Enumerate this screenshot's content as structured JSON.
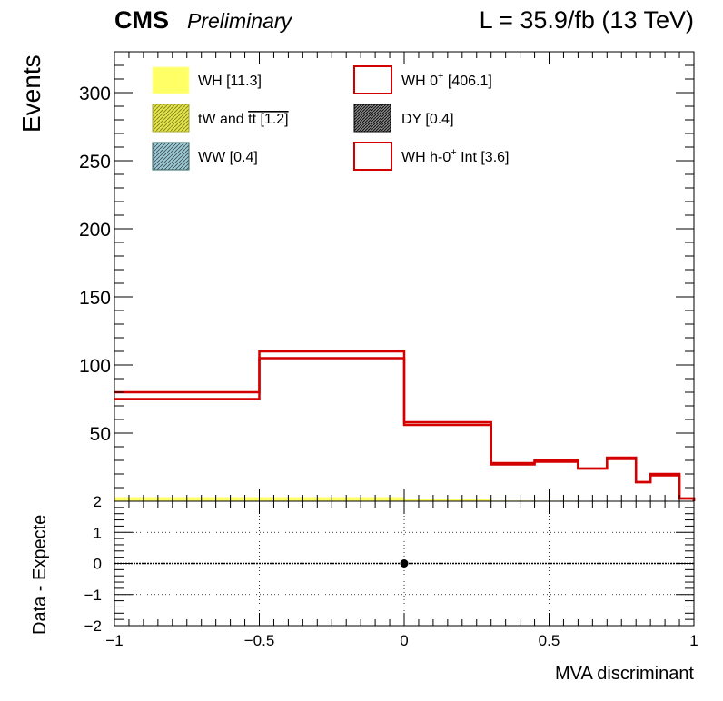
{
  "header": {
    "experiment": "CMS",
    "status": "Preliminary",
    "lumi": "L = 35.9/fb (13 TeV)"
  },
  "legend": {
    "items": [
      {
        "label": "WH [11.3]",
        "style": "yellow-fill"
      },
      {
        "label": "WH 0+ [406.1]",
        "label_main": "WH 0",
        "label_sup": "+",
        "label_rest": " [406.1]",
        "style": "red-line"
      },
      {
        "label": "tW and tt [1.2]",
        "label_main": "tW and ",
        "label_over": "tt [1.2]",
        "style": "olive-hatch"
      },
      {
        "label": "DY [0.4]",
        "style": "dark-hatch"
      },
      {
        "label": "WW [0.4]",
        "style": "teal-hatch"
      },
      {
        "label": "WH h-0+ Int [3.6]",
        "label_main": "WH h-0",
        "label_sup": "+",
        "label_rest": " Int [3.6]",
        "style": "red-line"
      }
    ]
  },
  "colors": {
    "signal": "#d40000",
    "wh": "#ffff66",
    "tw_tt": "#cccc33",
    "ww": "#66aaaa",
    "dy": "#444444"
  },
  "chart_data": [
    {
      "type": "line",
      "title": "",
      "xlabel": "MVA discriminant",
      "ylabel": "Events",
      "xlim": [
        -1,
        1
      ],
      "ylim": [
        0,
        330
      ],
      "yticks": [
        50,
        100,
        150,
        200,
        250,
        300
      ],
      "bin_edges": [
        -1.0,
        -0.5,
        0.0,
        0.3,
        0.45,
        0.6,
        0.7,
        0.8,
        0.85,
        0.95,
        1.0
      ],
      "series": [
        {
          "name": "WH 0+ [406.1]",
          "style": "step",
          "color": "#d40000",
          "values": [
            80,
            110,
            58,
            28,
            30,
            24,
            32,
            14,
            20,
            2
          ]
        },
        {
          "name": "WH h-0+ Int [3.6]",
          "style": "step",
          "color": "#d40000",
          "values": [
            75,
            105,
            56,
            27,
            29,
            24,
            31,
            14,
            19,
            2
          ]
        },
        {
          "name": "WH [11.3]",
          "style": "filled",
          "color": "#ffff66",
          "values": [
            3,
            3,
            1.5,
            0.5,
            0.4,
            0.3,
            0.3,
            0.2,
            0.2,
            0.1
          ]
        }
      ]
    },
    {
      "type": "scatter",
      "xlabel": "MVA discriminant",
      "ylabel": "Data - Expecte",
      "xlim": [
        -1,
        1
      ],
      "ylim": [
        -2,
        2
      ],
      "xticks": [
        -1,
        -0.5,
        0,
        0.5,
        1
      ],
      "xtick_labels": [
        "−1",
        "−0.5",
        "0",
        "0.5",
        "1"
      ],
      "yticks": [
        -2,
        -1,
        0,
        1,
        2
      ],
      "ytick_labels": [
        "−2",
        "−1",
        "0",
        "1",
        "2"
      ],
      "points": [
        {
          "x": 0,
          "y": 0
        }
      ],
      "grid": true
    }
  ]
}
